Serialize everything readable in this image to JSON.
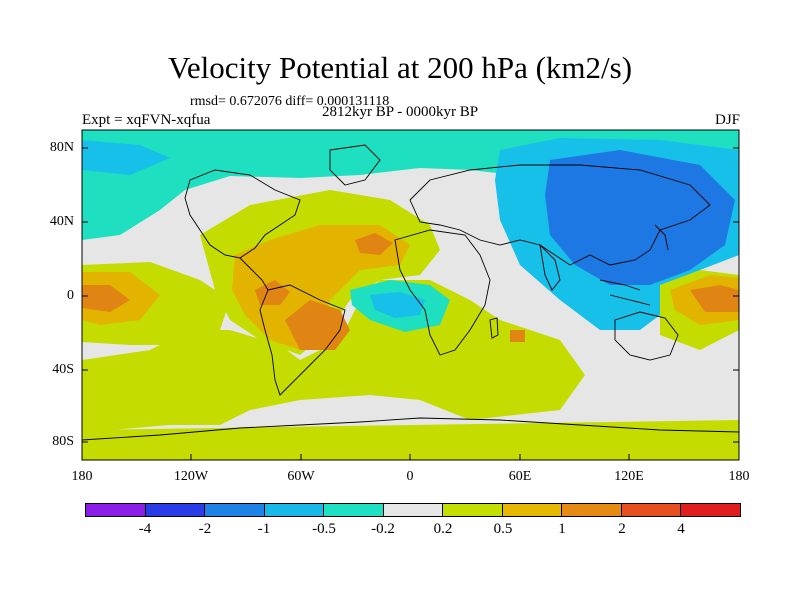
{
  "title": "Velocity Potential at 200 hPa (km2/s)",
  "stats": "rmsd= 0.672076 diff= 0.000131118",
  "experiment": "Expt = xqFVN-xqfua",
  "period": "2812kyr BP - 0000kyr BP",
  "season": "DJF",
  "map": {
    "lat_labels": [
      "80N",
      "40N",
      "0",
      "40S",
      "80S"
    ],
    "lon_labels": [
      "180",
      "120W",
      "60W",
      "0",
      "60E",
      "120E",
      "180"
    ]
  },
  "colorbar": {
    "labels": [
      "-4",
      "-2",
      "-1",
      "-0.5",
      "-0.2",
      "0.2",
      "0.5",
      "1",
      "2",
      "4"
    ],
    "colors": [
      "#8a1ee8",
      "#2a3ce8",
      "#1e82e6",
      "#18b8e8",
      "#1ee0c2",
      "#e6e6e6",
      "#c4de00",
      "#e6b800",
      "#e68a14",
      "#e6501e",
      "#e01e1e"
    ]
  },
  "fill_colors": {
    "blue": "#1e78e4",
    "sky": "#16c0e8",
    "teal": "#1ee0c0",
    "gray": "#e6e6e6",
    "lime": "#c4dc00",
    "yellow": "#e2b400",
    "orange": "#e08414",
    "darkorange": "#e0641a"
  }
}
